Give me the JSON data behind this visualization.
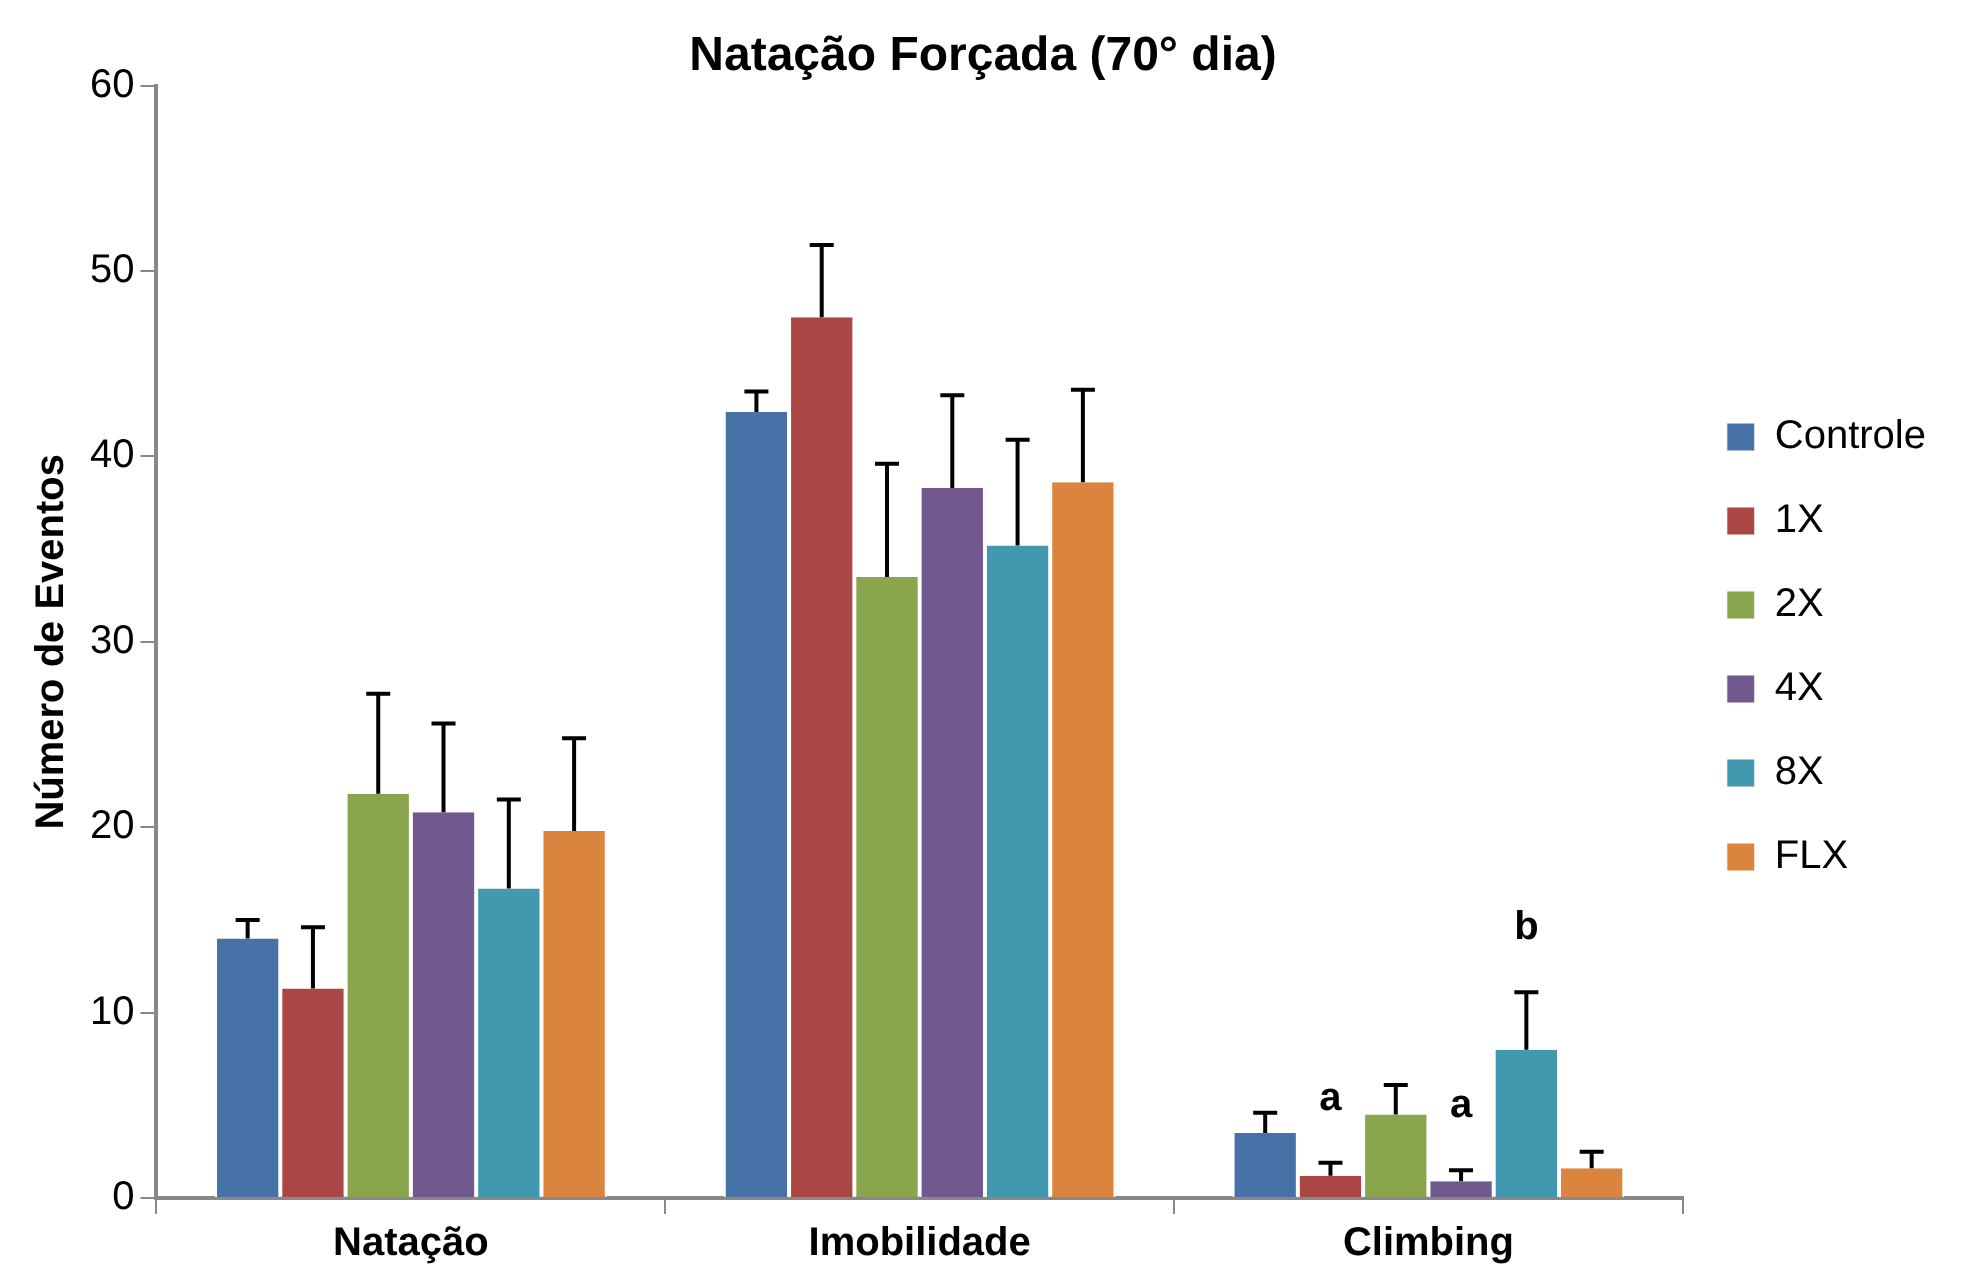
{
  "chart_data": {
    "type": "bar",
    "title": "Natação Forçada (70° dia)",
    "ylabel": "Número de Eventos",
    "categories": [
      "Natação",
      "Imobilidade",
      "Climbing"
    ],
    "ylim": [
      0,
      60
    ],
    "yticks": [
      0,
      10,
      20,
      30,
      40,
      50,
      60
    ],
    "grid": false,
    "legend": "right",
    "series": [
      {
        "name": "Controle",
        "color": "#4672a8",
        "values": [
          14.0,
          42.4,
          3.5
        ],
        "errors": [
          [
            14.0,
            15.0
          ],
          [
            42.4,
            43.5
          ],
          [
            3.5,
            4.6
          ]
        ]
      },
      {
        "name": "1X",
        "color": "#aa4644",
        "values": [
          11.3,
          47.5,
          1.2
        ],
        "errors": [
          [
            11.3,
            14.6
          ],
          [
            47.5,
            51.4
          ],
          [
            1.2,
            1.9
          ]
        ],
        "value_labels": [
          null,
          null,
          "a"
        ]
      },
      {
        "name": "2X",
        "color": "#89a54e",
        "values": [
          21.8,
          33.5,
          4.5
        ],
        "errors": [
          [
            21.8,
            27.2
          ],
          [
            33.5,
            39.6
          ],
          [
            4.5,
            6.1
          ]
        ]
      },
      {
        "name": "4X",
        "color": "#71588f",
        "values": [
          20.8,
          38.3,
          0.9
        ],
        "errors": [
          [
            20.8,
            25.6
          ],
          [
            38.3,
            43.3
          ],
          [
            0.9,
            1.5
          ]
        ],
        "value_labels": [
          null,
          null,
          "a"
        ]
      },
      {
        "name": "8X",
        "color": "#4198af",
        "values": [
          16.7,
          35.2,
          8.0
        ],
        "errors": [
          [
            16.7,
            21.5
          ],
          [
            35.2,
            40.9
          ],
          [
            8.0,
            11.1
          ]
        ],
        "value_labels": [
          null,
          null,
          "b"
        ]
      },
      {
        "name": "FLX",
        "color": "#db843d",
        "values": [
          19.8,
          38.6,
          1.6
        ],
        "errors": [
          [
            19.8,
            24.8
          ],
          [
            38.6,
            43.6
          ],
          [
            1.6,
            2.5
          ]
        ]
      }
    ]
  }
}
